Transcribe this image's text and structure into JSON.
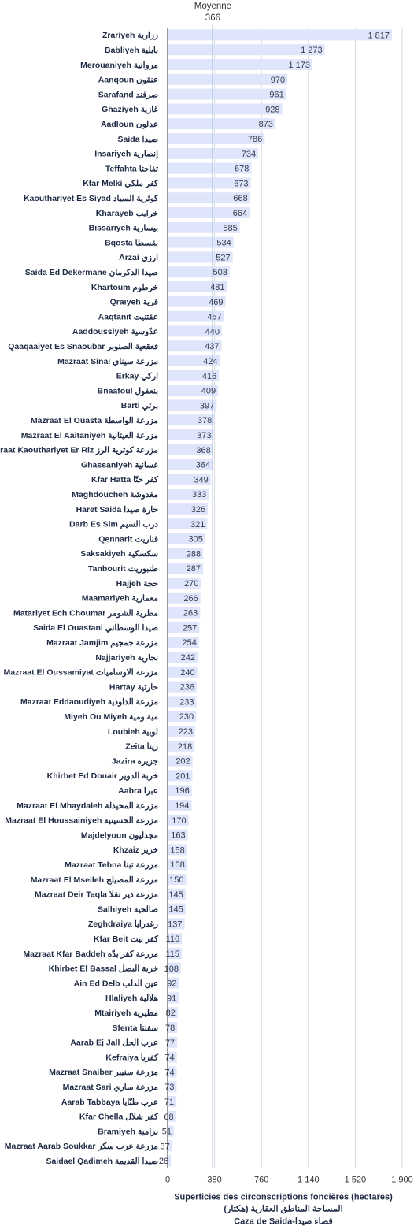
{
  "chart_data": {
    "type": "bar",
    "orientation": "horizontal",
    "categories": [
      "Zrariyeh زرارية",
      "Babliyeh بابلية",
      "Merouaniyeh مروانية",
      "Aanqoun عنقون",
      "Sarafand صرفند",
      "Ghaziyeh غازية",
      "Aadloun عدلون",
      "Saida صيدا",
      "Insariyeh إنصارية",
      "Teffahta تفاحتا",
      "Kfar Melki كفر ملكي",
      "Kaouthariyet Es Siyad كوثرية السياد",
      "Kharayeb خرايب",
      "Bissariyeh بيسارية",
      "Bqosta بقسطا",
      "Arzai ارزي",
      "Saida Ed Dekermane صيدا الدكرمان",
      "Khartoum خرطوم",
      "Qraiyeh قرية",
      "Aaqtanit عقتنيت",
      "Aaddoussiyeh عدّوسية",
      "Qaaqaaiyet Es Snaoubar قعقعية الصنوبر",
      "Mazraat Sinai مزرعة سيناي",
      "Erkay اركي",
      "Bnaafoul بنعفول",
      "Barti برتي",
      "Mazraat El Ouasta مزرعة الواسطة",
      "Mazraat El Aaitaniyeh مزرعة العيتانية",
      "Mazraat Kaouthariyet Er Riz مزرعة كوثرية الرز",
      "Ghassaniyeh غسانية",
      "Kfar Hatta كفر حتّا",
      "Maghdoucheh مغدوشة",
      "Haret Saida حارة صيدا",
      "Darb Es Sim درب السيم",
      "Qennarit قناريت",
      "Saksakiyeh سكسكية",
      "Tanbourit طنبوريت",
      "Hajjeh حجة",
      "Maamariyeh معمارية",
      "Matariyet Ech Choumar مطرية الشومر",
      "Saida El Ouastani صيدا الوسطاني",
      "Mazraat Jamjim مزرعة جمجيم",
      "Najjariyeh نجارية",
      "Mazraat El Oussamiyat مزرعة الاوساميات",
      "Hartay حارتية",
      "Mazraat Eddaoudiyeh مزرعة الداودية",
      "Miyeh Ou Miyeh مية ومية",
      "Loubieh لوبية",
      "Zeita زيتا",
      "Jazira جزيرة",
      "Khirbet Ed Douair خربة الدوير",
      "Aabra عبرا",
      "Mazraat El Mhaydaleh مزرعة المحيدلة",
      "Mazraat El Houssainiyeh مزرعة الحسينية",
      "Majdelyoun مجدليون",
      "Khzaiz خزيز",
      "Mazraat Tebna مزرعة تبنا",
      "Mazraat El Mseileh مزرعة المصيلح",
      "Mazraat Deir Taqla مزرعة دير تقلا",
      "Salhiyeh صالحية",
      "Zeghdraiya زغدرايا",
      "Kfar Beit كفر بيت",
      "Mazraat Kfar Baddeh مزرعة كفر بدّه",
      "Khirbet El Bassal خربة البصل",
      "Ain Ed Delb عين الدلب",
      "Hlaliyeh هلالية",
      "Mtairiyeh مطيرية",
      "Sfenta سفنتا",
      "Aarab Ej Jall عرب الجل",
      "Kefraiya كفريا",
      "Mazraat Snaiber مزرعة سنيبر",
      "Mazraat Sari مزرعة ساري",
      "Aarab Tabbaya عرب طبّايا",
      "Kfar Chella كفر شلال",
      "Bramiyeh برامية",
      "Mazraat Aarab Soukkar مزرعة عرب سكر",
      "Saidael Qadimeh صيدا القديمة"
    ],
    "values": [
      1817,
      1273,
      1173,
      970,
      961,
      928,
      873,
      786,
      734,
      678,
      673,
      668,
      664,
      585,
      534,
      527,
      503,
      481,
      469,
      457,
      440,
      437,
      424,
      416,
      409,
      397,
      378,
      373,
      368,
      364,
      349,
      333,
      326,
      321,
      305,
      288,
      287,
      270,
      266,
      263,
      257,
      254,
      242,
      240,
      236,
      233,
      230,
      223,
      218,
      202,
      201,
      196,
      194,
      170,
      163,
      158,
      158,
      150,
      145,
      145,
      137,
      116,
      115,
      108,
      92,
      91,
      82,
      78,
      77,
      74,
      74,
      73,
      71,
      68,
      51,
      37,
      26
    ],
    "value_labels": [
      "1 817",
      "1 273",
      "1 173",
      "970",
      "961",
      "928",
      "873",
      "786",
      "734",
      "678",
      "673",
      "668",
      "664",
      "585",
      "534",
      "527",
      "503",
      "481",
      "469",
      "457",
      "440",
      "437",
      "424",
      "416",
      "409",
      "397",
      "378",
      "373",
      "368",
      "364",
      "349",
      "333",
      "326",
      "321",
      "305",
      "288",
      "287",
      "270",
      "266",
      "263",
      "257",
      "254",
      "242",
      "240",
      "236",
      "233",
      "230",
      "223",
      "218",
      "202",
      "201",
      "196",
      "194",
      "170",
      "163",
      "158",
      "158",
      "150",
      "145",
      "145",
      "137",
      "116",
      "115",
      "108",
      "92",
      "91",
      "82",
      "78",
      "77",
      "74",
      "74",
      "73",
      "71",
      "68",
      "51",
      "37",
      "26"
    ],
    "xlim": [
      0,
      1900
    ],
    "x_ticks": [
      0,
      380,
      760,
      1140,
      1520,
      1900
    ],
    "x_tick_labels": [
      "0",
      "380",
      "760",
      "1 140",
      "1 520",
      "1 900"
    ],
    "xlabel_lines": [
      "Superficies des circonscriptions foncières (hectares)",
      "المساحة المناطق العقارية (هكتار)",
      "Caza de Saida-قضاء صيدا"
    ],
    "mean_label": "Moyenne",
    "mean_value": 366,
    "mean_value_label": "366",
    "grid": true,
    "colors": {
      "bar": "#dfe6fb",
      "mean_line": "#3f6fb5",
      "grid": "#d9d9d9",
      "axis": "#333333"
    }
  }
}
